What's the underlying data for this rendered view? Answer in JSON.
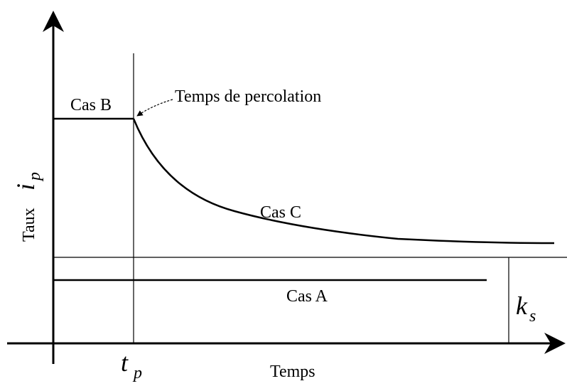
{
  "labels": {
    "case_b": "Cas B",
    "case_c": "Cas C",
    "case_a": "Cas A",
    "percolation": "Temps de percolation",
    "rate": "Taux",
    "rate_symbol": "i",
    "rate_subscript": "p",
    "time": "Temps",
    "tp_symbol": "t",
    "tp_subscript": "p",
    "ks_symbol": "k",
    "ks_subscript": "s"
  }
}
